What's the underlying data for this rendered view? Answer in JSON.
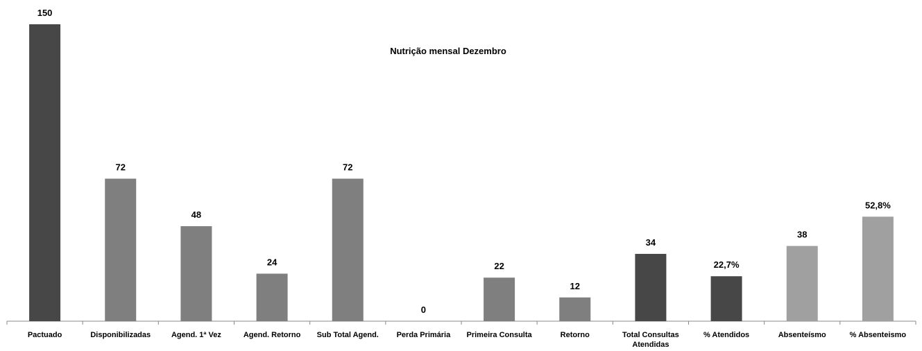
{
  "chart_data": {
    "type": "bar",
    "title": "Nutrição mensal  Dezembro",
    "categories": [
      "Pactuado",
      "Disponibilizadas",
      "Agend. 1ª Vez",
      "Agend. Retorno",
      "Sub Total Agend.",
      "Perda Primária",
      "Primeira Consulta",
      "Retorno",
      "Total Consultas Atendidas",
      "% Atendidos",
      "Absenteísmo",
      "% Absenteismo"
    ],
    "values": [
      150,
      72,
      48,
      24,
      72,
      0,
      22,
      12,
      34,
      22.7,
      38,
      52.8
    ],
    "value_labels": [
      "150",
      "72",
      "48",
      "24",
      "72",
      "0",
      "22",
      "12",
      "34",
      "22,7%",
      "38",
      "52,8%"
    ],
    "colors": [
      "#474747",
      "#7f7f7f",
      "#7f7f7f",
      "#7f7f7f",
      "#7f7f7f",
      "#7f7f7f",
      "#7f7f7f",
      "#7f7f7f",
      "#474747",
      "#474747",
      "#a0a0a0",
      "#a0a0a0"
    ],
    "ylim": [
      0,
      150
    ]
  }
}
